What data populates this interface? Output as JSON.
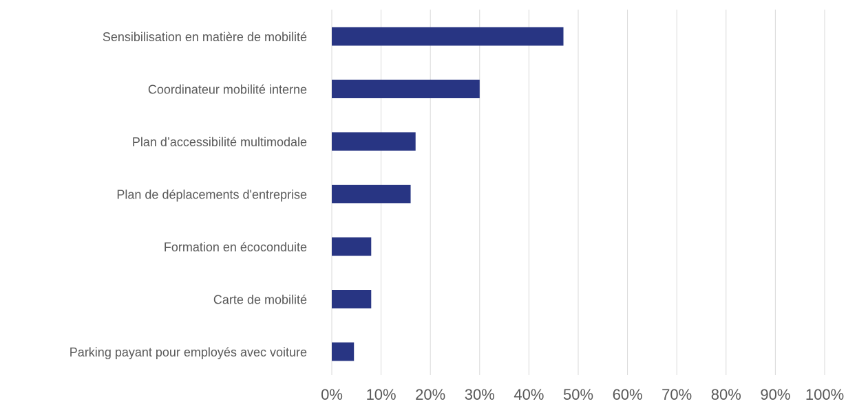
{
  "chart_data": {
    "type": "bar",
    "orientation": "horizontal",
    "title": "",
    "xlabel": "",
    "ylabel": "",
    "categories": [
      "Sensibilisation en matière de mobilité",
      "Coordinateur mobilité interne",
      "Plan d’accessibilité multimodale",
      "Plan de déplacements d'entreprise",
      "Formation en écoconduite",
      "Carte de mobilité",
      "Parking payant pour employés avec voiture"
    ],
    "values": [
      0.47,
      0.3,
      0.17,
      0.16,
      0.08,
      0.08,
      0.045
    ],
    "xlim": [
      0,
      1
    ],
    "x_ticks": [
      0,
      0.1,
      0.2,
      0.3,
      0.4,
      0.5,
      0.6,
      0.7,
      0.8,
      0.9,
      1.0
    ],
    "x_tick_labels": [
      "0%",
      "10%",
      "20%",
      "30%",
      "40%",
      "50%",
      "60%",
      "70%",
      "80%",
      "90%",
      "100%"
    ],
    "grid": true,
    "legend": "none",
    "colors": {
      "bar": "#283583",
      "grid": "#d9d9d9",
      "text": "#595959"
    }
  }
}
